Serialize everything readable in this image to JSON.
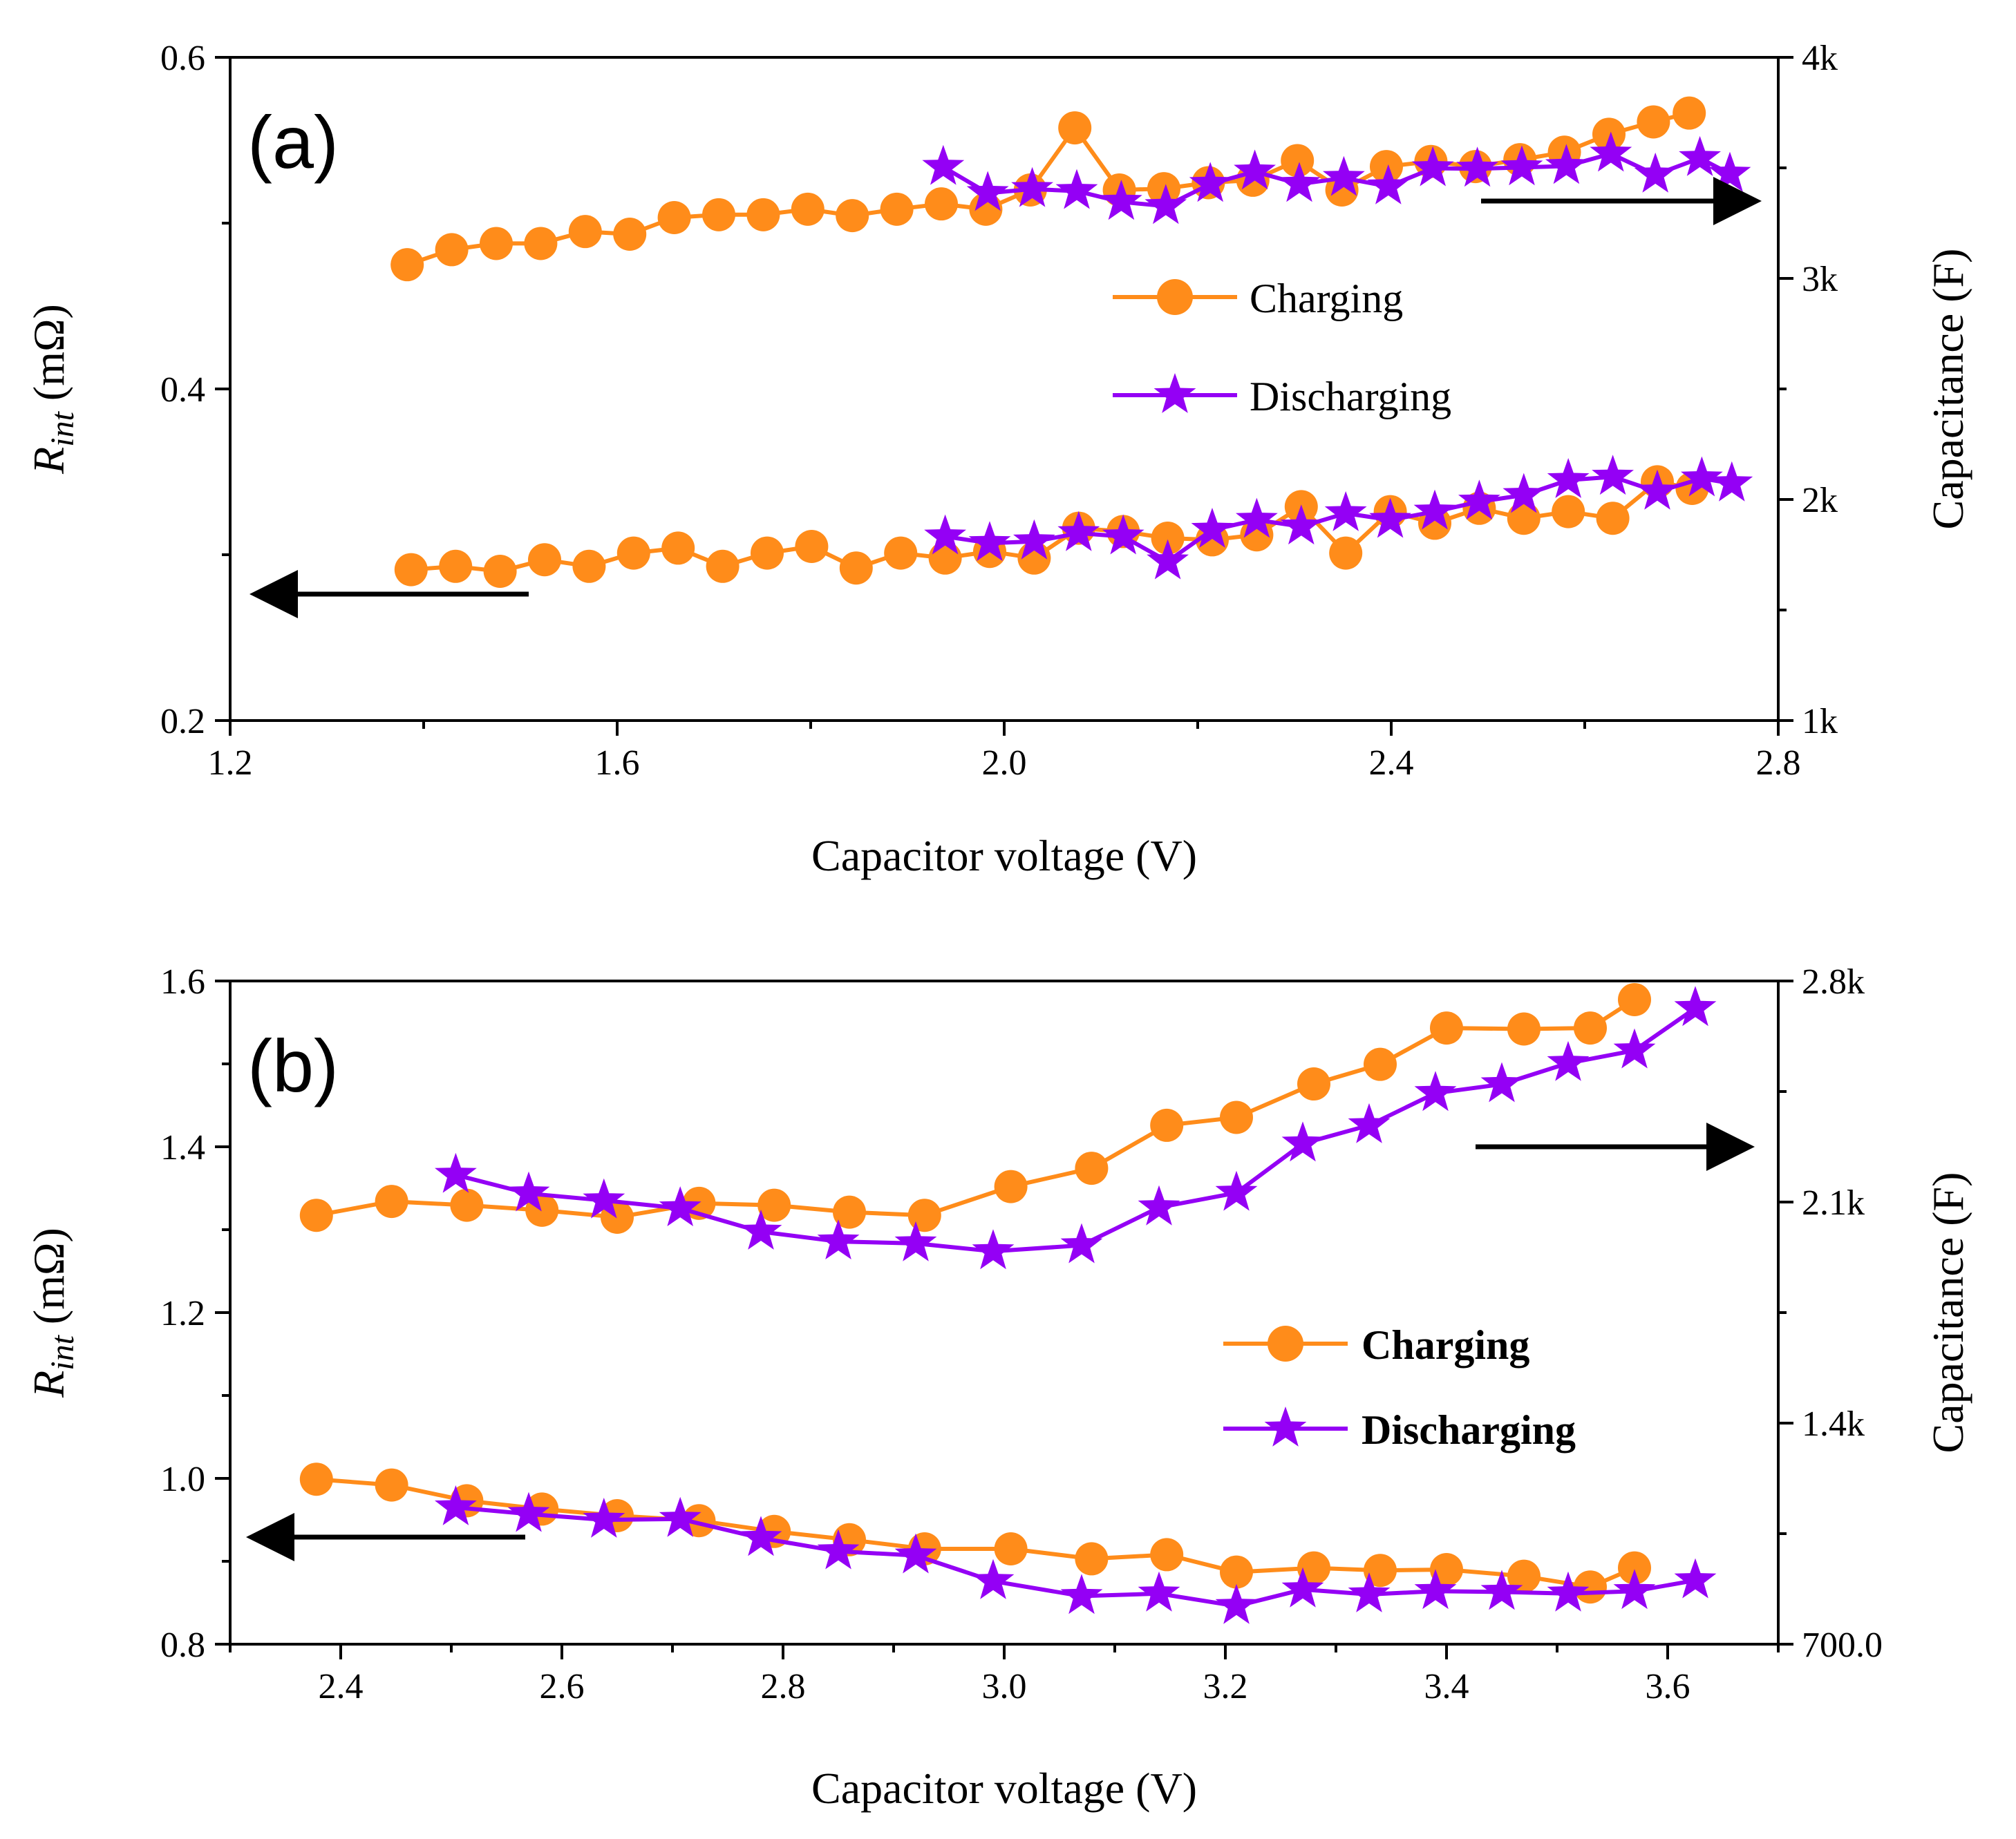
{
  "colors": {
    "charging": "#ff8c1a",
    "discharging": "#9400f5",
    "axis": "#000000"
  },
  "chart_data": [
    {
      "type": "line",
      "panel_label": "(a)",
      "xlabel": "Capacitor voltage (V)",
      "ylabel": "R",
      "ylabel_sub": "int",
      "ylabel_unit": " (mΩ)",
      "y2label": "Capacitance (F)",
      "xlim": [
        1.2,
        2.8
      ],
      "ylim": [
        0.2,
        0.6
      ],
      "y2lim": [
        1000,
        4000
      ],
      "xticks": [
        1.2,
        1.6,
        2.0,
        2.4,
        2.8
      ],
      "xtick_labels": [
        "1.2",
        "1.6",
        "2.0",
        "2.4",
        "2.8"
      ],
      "yticks": [
        0.2,
        0.4,
        0.6
      ],
      "ytick_labels": [
        "0.2",
        "0.4",
        "0.6"
      ],
      "y2ticks": [
        1000,
        2000,
        3000,
        4000
      ],
      "y2tick_labels": [
        "1k",
        "2k",
        "3k",
        "4k"
      ],
      "legend": {
        "labels": [
          "Charging",
          "Discharging"
        ],
        "bold": false,
        "position": "center-right"
      },
      "series": [
        {
          "name": "Charging",
          "axis": "right",
          "role": "capacitance",
          "marker": "circle",
          "x": [
            1.383,
            1.429,
            1.475,
            1.521,
            1.567,
            1.613,
            1.659,
            1.705,
            1.751,
            1.797,
            1.843,
            1.889,
            1.935,
            1.981,
            2.027,
            2.073,
            2.119,
            2.165,
            2.211,
            2.257,
            2.303,
            2.349,
            2.395,
            2.441,
            2.487,
            2.533,
            2.579,
            2.625,
            2.671,
            2.708
          ],
          "values": [
            3062,
            3130,
            3158,
            3158,
            3212,
            3200,
            3275,
            3288,
            3288,
            3313,
            3284,
            3313,
            3337,
            3313,
            3400,
            3681,
            3400,
            3406,
            3433,
            3444,
            3533,
            3400,
            3506,
            3529,
            3506,
            3537,
            3571,
            3652,
            3708,
            3748
          ]
        },
        {
          "name": "Discharging",
          "axis": "right",
          "role": "capacitance",
          "marker": "star",
          "x": [
            1.937,
            1.983,
            2.029,
            2.075,
            2.121,
            2.167,
            2.213,
            2.259,
            2.305,
            2.351,
            2.397,
            2.443,
            2.489,
            2.535,
            2.581,
            2.627,
            2.673,
            2.719,
            2.75
          ],
          "values": [
            3504,
            3386,
            3404,
            3395,
            3346,
            3327,
            3427,
            3483,
            3427,
            3454,
            3416,
            3498,
            3496,
            3502,
            3508,
            3564,
            3469,
            3544,
            3473
          ]
        },
        {
          "name": "Charging",
          "axis": "left",
          "role": "resistance",
          "marker": "circle",
          "x": [
            1.387,
            1.433,
            1.479,
            1.525,
            1.571,
            1.617,
            1.663,
            1.709,
            1.755,
            1.801,
            1.847,
            1.893,
            1.939,
            1.985,
            2.031,
            2.077,
            2.123,
            2.169,
            2.215,
            2.261,
            2.307,
            2.353,
            2.399,
            2.445,
            2.491,
            2.537,
            2.583,
            2.629,
            2.675,
            2.711
          ],
          "values": [
            0.291,
            0.293,
            0.29,
            0.297,
            0.293,
            0.301,
            0.304,
            0.293,
            0.301,
            0.305,
            0.292,
            0.301,
            0.298,
            0.302,
            0.298,
            0.316,
            0.314,
            0.31,
            0.309,
            0.312,
            0.329,
            0.301,
            0.326,
            0.319,
            0.328,
            0.322,
            0.326,
            0.322,
            0.344,
            0.34
          ]
        },
        {
          "name": "Discharging",
          "axis": "left",
          "role": "resistance",
          "marker": "star",
          "x": [
            1.939,
            1.985,
            2.031,
            2.077,
            2.123,
            2.169,
            2.215,
            2.261,
            2.307,
            2.353,
            2.399,
            2.445,
            2.491,
            2.537,
            2.583,
            2.629,
            2.675,
            2.721,
            2.752
          ],
          "values": [
            0.311,
            0.307,
            0.308,
            0.313,
            0.311,
            0.296,
            0.315,
            0.321,
            0.317,
            0.325,
            0.321,
            0.326,
            0.332,
            0.336,
            0.345,
            0.347,
            0.338,
            0.346,
            0.343
          ]
        }
      ]
    },
    {
      "type": "line",
      "panel_label": "(b)",
      "xlabel": "Capacitor voltage (V)",
      "ylabel": "R",
      "ylabel_sub": "int",
      "ylabel_unit": " (mΩ)",
      "y2label": "Capacitance (F)",
      "xlim": [
        2.3,
        3.7
      ],
      "ylim": [
        0.8,
        1.6
      ],
      "y2lim": [
        700,
        2800
      ],
      "xticks": [
        2.4,
        2.6,
        2.8,
        3.0,
        3.2,
        3.4,
        3.6
      ],
      "xtick_labels": [
        "2.4",
        "2.6",
        "2.8",
        "3.0",
        "3.2",
        "3.4",
        "3.6"
      ],
      "yticks": [
        0.8,
        1.0,
        1.2,
        1.4,
        1.6
      ],
      "ytick_labels": [
        "0.8",
        "1.0",
        "1.2",
        "1.4",
        "1.6"
      ],
      "y2ticks": [
        700,
        1400,
        2100,
        2800
      ],
      "y2tick_labels": [
        "700.0",
        "1.4k",
        "2.1k",
        "2.8k"
      ],
      "legend": {
        "labels": [
          "Charging",
          "Discharging"
        ],
        "bold": true,
        "position": "center-right"
      },
      "series": [
        {
          "name": "Charging",
          "axis": "right",
          "role": "capacitance",
          "marker": "circle",
          "x": [
            2.378,
            2.446,
            2.514,
            2.582,
            2.65,
            2.724,
            2.792,
            2.86,
            2.928,
            3.006,
            3.079,
            3.147,
            3.21,
            3.28,
            3.34,
            3.4,
            3.47,
            3.53,
            3.57
          ],
          "values": [
            2058,
            2102,
            2090,
            2074,
            2052,
            2096,
            2090,
            2068,
            2058,
            2149,
            2207,
            2343,
            2368,
            2474,
            2536,
            2651,
            2648,
            2651,
            2741
          ]
        },
        {
          "name": "Discharging",
          "axis": "right",
          "role": "capacitance",
          "marker": "star",
          "x": [
            2.504,
            2.57,
            2.638,
            2.707,
            2.78,
            2.85,
            2.92,
            2.99,
            3.07,
            3.14,
            3.21,
            3.27,
            3.33,
            3.39,
            3.45,
            3.51,
            3.57,
            3.625
          ],
          "values": [
            2186,
            2127,
            2105,
            2080,
            2006,
            1975,
            1969,
            1944,
            1963,
            2083,
            2129,
            2285,
            2343,
            2445,
            2473,
            2540,
            2580,
            2714
          ]
        },
        {
          "name": "Charging",
          "axis": "left",
          "role": "resistance",
          "marker": "circle",
          "x": [
            2.378,
            2.446,
            2.514,
            2.582,
            2.65,
            2.724,
            2.792,
            2.86,
            2.928,
            3.006,
            3.079,
            3.147,
            3.21,
            3.28,
            3.34,
            3.4,
            3.47,
            3.53,
            3.57
          ],
          "values": [
            0.999,
            0.992,
            0.973,
            0.963,
            0.955,
            0.949,
            0.936,
            0.926,
            0.915,
            0.915,
            0.903,
            0.908,
            0.887,
            0.892,
            0.889,
            0.89,
            0.882,
            0.869,
            0.892
          ]
        },
        {
          "name": "Discharging",
          "axis": "left",
          "role": "resistance",
          "marker": "star",
          "x": [
            2.504,
            2.57,
            2.638,
            2.707,
            2.78,
            2.85,
            2.92,
            2.99,
            3.07,
            3.14,
            3.21,
            3.27,
            3.33,
            3.39,
            3.45,
            3.51,
            3.57,
            3.625
          ],
          "values": [
            0.965,
            0.957,
            0.95,
            0.951,
            0.928,
            0.912,
            0.907,
            0.876,
            0.858,
            0.861,
            0.846,
            0.866,
            0.86,
            0.864,
            0.863,
            0.861,
            0.864,
            0.877
          ]
        }
      ]
    }
  ]
}
